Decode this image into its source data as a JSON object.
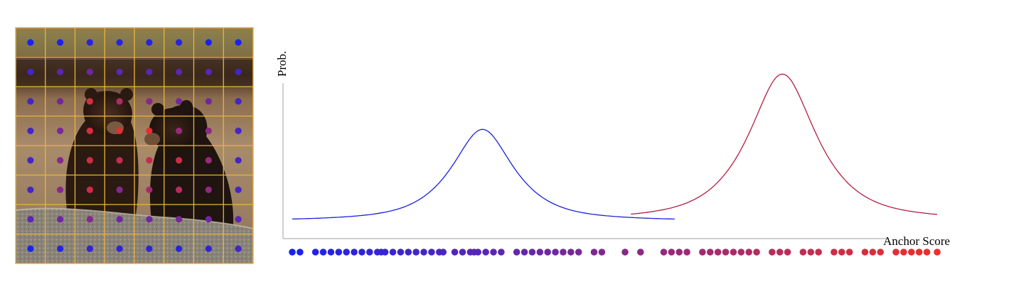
{
  "labels": {
    "y_axis": "Prob.",
    "x_axis": "Anchor Score"
  },
  "colors": {
    "grid_line": "#e8b43a",
    "low_score": "#1a22ee",
    "high_score": "#ee2f2a",
    "blue_curve": "#1a22dd",
    "red_curve": "#b21f45",
    "axis": "#b5b5b5"
  },
  "photo": {
    "subject": "two bear cubs sitting on a rock",
    "grid_rows": 8,
    "grid_cols": 8,
    "anchor_scores": [
      [
        0.0,
        0.0,
        0.05,
        0.05,
        0.05,
        0.05,
        0.0,
        0.0
      ],
      [
        0.2,
        0.3,
        0.4,
        0.3,
        0.3,
        0.3,
        0.3,
        0.2
      ],
      [
        0.2,
        0.4,
        0.9,
        0.7,
        0.5,
        0.4,
        0.4,
        0.2
      ],
      [
        0.2,
        0.45,
        0.9,
        0.95,
        0.95,
        0.6,
        0.55,
        0.2
      ],
      [
        0.2,
        0.5,
        0.85,
        0.8,
        0.8,
        0.85,
        0.6,
        0.2
      ],
      [
        0.2,
        0.5,
        0.85,
        0.5,
        0.65,
        0.75,
        0.55,
        0.2
      ],
      [
        0.3,
        0.4,
        0.5,
        0.4,
        0.4,
        0.45,
        0.4,
        0.3
      ],
      [
        0.0,
        0.05,
        0.1,
        0.1,
        0.1,
        0.05,
        0.1,
        0.2
      ]
    ]
  },
  "score_strip": [
    0,
    0.012,
    0.036,
    0.048,
    0.06,
    0.072,
    0.084,
    0.096,
    0.108,
    0.12,
    0.132,
    0.138,
    0.144,
    0.156,
    0.168,
    0.18,
    0.192,
    0.204,
    0.216,
    0.228,
    0.234,
    0.252,
    0.264,
    0.276,
    0.282,
    0.288,
    0.3,
    0.312,
    0.324,
    0.348,
    0.36,
    0.372,
    0.384,
    0.396,
    0.408,
    0.42,
    0.432,
    0.444,
    0.468,
    0.48,
    0.516,
    0.54,
    0.576,
    0.588,
    0.6,
    0.612,
    0.636,
    0.648,
    0.66,
    0.672,
    0.684,
    0.696,
    0.708,
    0.72,
    0.744,
    0.756,
    0.768,
    0.792,
    0.804,
    0.816,
    0.84,
    0.852,
    0.864,
    0.888,
    0.9,
    0.912,
    0.936,
    0.948,
    0.96,
    0.972,
    0.984,
    1.0
  ],
  "distributions": [
    {
      "color_key": "blue_curve",
      "mode": 0.295,
      "peak": 0.55
    },
    {
      "color_key": "red_curve",
      "mode": 0.76,
      "peak": 0.88
    }
  ]
}
